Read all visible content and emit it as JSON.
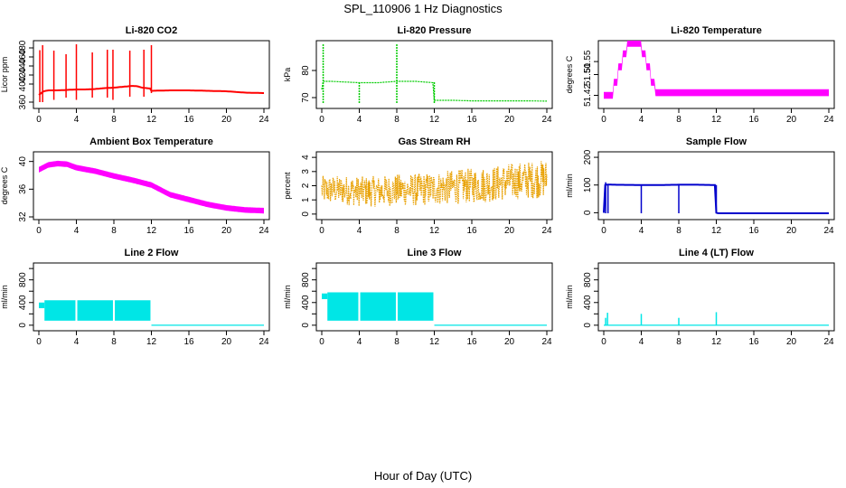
{
  "page": {
    "title": "SPL_110906  1 Hz Diagnostics",
    "xlabel": "Hour of Day (UTC)"
  },
  "chart_data": [
    {
      "id": "co2",
      "type": "line",
      "title": "Li-820 CO2",
      "ylabel": "Licor ppm",
      "xlim": [
        0,
        24
      ],
      "xticks": [
        0,
        4,
        8,
        12,
        16,
        20,
        24
      ],
      "ylim": [
        352,
        490
      ],
      "yticks": [
        360,
        400,
        420,
        440,
        460,
        480
      ],
      "color": "#ff0000",
      "style": "line",
      "series": [
        {
          "name": "CO2",
          "x": [
            0,
            0.5,
            1,
            2,
            3,
            4,
            5,
            6,
            7,
            8,
            9,
            10,
            10.5,
            11,
            11.9,
            12,
            14,
            16,
            18,
            20,
            22,
            24
          ],
          "y": [
            376,
            384,
            386,
            386,
            387,
            388,
            388,
            389,
            391,
            392,
            394,
            396,
            395,
            392,
            390,
            385,
            386,
            386,
            385,
            384,
            381,
            380
          ]
        }
      ],
      "spikes": [
        {
          "x": 0.1,
          "y1": 360,
          "y2": 475
        },
        {
          "x": 0.4,
          "y1": 360,
          "y2": 486
        },
        {
          "x": 1.6,
          "y1": 365,
          "y2": 474
        },
        {
          "x": 2.9,
          "y1": 370,
          "y2": 466
        },
        {
          "x": 4.0,
          "y1": 365,
          "y2": 488
        },
        {
          "x": 5.7,
          "y1": 370,
          "y2": 470
        },
        {
          "x": 7.3,
          "y1": 370,
          "y2": 476
        },
        {
          "x": 7.9,
          "y1": 365,
          "y2": 476
        },
        {
          "x": 9.7,
          "y1": 372,
          "y2": 474
        },
        {
          "x": 11.2,
          "y1": 372,
          "y2": 476
        },
        {
          "x": 12.0,
          "y1": 380,
          "y2": 486
        }
      ]
    },
    {
      "id": "pressure",
      "type": "line",
      "title": "Li-820 Pressure",
      "ylabel": "kPa",
      "xlim": [
        0,
        24
      ],
      "xticks": [
        0,
        4,
        8,
        12,
        16,
        20,
        24
      ],
      "ylim": [
        67,
        90
      ],
      "yticks": [
        70,
        80
      ],
      "color": "#00cc00",
      "style": "dotted",
      "series": [
        {
          "name": "Pressure",
          "x": [
            0,
            0.1,
            0.3,
            1,
            4,
            6,
            8,
            10,
            11.9,
            12,
            12.2,
            14,
            16,
            18,
            20,
            22,
            24
          ],
          "y": [
            73,
            76,
            76,
            76,
            75.5,
            75.5,
            76,
            76,
            75.5,
            69,
            69,
            69,
            68.8,
            68.8,
            68.8,
            68.8,
            68.7
          ]
        }
      ],
      "spikes": [
        {
          "x": 0.15,
          "y1": 68,
          "y2": 90
        },
        {
          "x": 4.0,
          "y1": 68,
          "y2": 76
        },
        {
          "x": 8.0,
          "y1": 68,
          "y2": 90
        },
        {
          "x": 12.0,
          "y1": 68,
          "y2": 76
        }
      ]
    },
    {
      "id": "temp820",
      "type": "step",
      "title": "Li-820 Temperature",
      "ylabel": "degrees C",
      "xlim": [
        0,
        24
      ],
      "xticks": [
        0,
        4,
        8,
        12,
        16,
        20,
        24
      ],
      "ylim": [
        51.38,
        51.62
      ],
      "yticks": [
        51.42,
        51.5,
        51.55
      ],
      "ytick_labels": [
        "51.42",
        "51.50",
        "51.55"
      ],
      "color": "#ff00ff",
      "style": "band",
      "series": [
        {
          "name": "Temperature",
          "x": [
            0,
            1,
            1.5,
            2,
            2.5,
            3.5,
            4,
            4.5,
            5,
            5.5,
            24
          ],
          "y": [
            51.42,
            51.47,
            51.53,
            51.58,
            51.62,
            51.62,
            51.58,
            51.53,
            51.47,
            51.43,
            51.43
          ]
        }
      ]
    },
    {
      "id": "ambient",
      "type": "line",
      "title": "Ambient Box Temperature",
      "ylabel": "degrees C",
      "xlim": [
        0,
        24
      ],
      "xticks": [
        0,
        4,
        8,
        12,
        16,
        20,
        24
      ],
      "ylim": [
        32,
        41
      ],
      "yticks": [
        32,
        36,
        40
      ],
      "color": "#ff00ff",
      "style": "band",
      "series": [
        {
          "name": "Ambient",
          "x": [
            0,
            1,
            2,
            3,
            4,
            6,
            8,
            10,
            12,
            13,
            14,
            16,
            18,
            20,
            22,
            24
          ],
          "y": [
            38.8,
            39.5,
            39.7,
            39.6,
            39.1,
            38.6,
            37.9,
            37.3,
            36.6,
            35.9,
            35.2,
            34.5,
            33.8,
            33.3,
            33.0,
            32.9
          ]
        }
      ]
    },
    {
      "id": "rh",
      "type": "line",
      "title": "Gas Stream RH",
      "ylabel": "percent",
      "xlim": [
        0,
        24
      ],
      "xticks": [
        0,
        4,
        8,
        12,
        16,
        20,
        24
      ],
      "ylim": [
        -0.2,
        4.2
      ],
      "yticks": [
        0,
        1,
        2,
        3,
        4
      ],
      "color": "#e8a000",
      "style": "noise",
      "series": [
        {
          "name": "RH",
          "x": [
            0,
            2,
            4,
            6,
            8,
            10,
            12,
            14,
            16,
            18,
            20,
            22,
            24
          ],
          "y": [
            1.7,
            1.7,
            1.6,
            1.6,
            1.7,
            1.7,
            1.8,
            1.9,
            2.0,
            2.1,
            2.3,
            2.4,
            2.5
          ]
        }
      ]
    },
    {
      "id": "sampleflow",
      "type": "line",
      "title": "Sample Flow",
      "ylabel": "ml/min",
      "xlim": [
        0,
        24
      ],
      "xticks": [
        0,
        4,
        8,
        12,
        16,
        20,
        24
      ],
      "ylim": [
        -15,
        210
      ],
      "yticks": [
        0,
        100,
        200
      ],
      "color": "#0000cc",
      "style": "line",
      "series": [
        {
          "name": "Sample Flow",
          "x": [
            0,
            0.1,
            0.5,
            1,
            4,
            6,
            8,
            10,
            11.9,
            12,
            12.2,
            16,
            20,
            24
          ],
          "y": [
            0,
            100,
            102,
            101,
            100,
            100,
            101,
            101,
            100,
            0,
            -2,
            -2,
            -2,
            -2
          ]
        }
      ],
      "spikes": [
        {
          "x": 0.2,
          "y1": -2,
          "y2": 110
        },
        {
          "x": 0.45,
          "y1": -2,
          "y2": 100
        },
        {
          "x": 4.0,
          "y1": -2,
          "y2": 100
        },
        {
          "x": 8.0,
          "y1": -2,
          "y2": 100
        },
        {
          "x": 12.0,
          "y1": -2,
          "y2": 100
        }
      ]
    },
    {
      "id": "line2",
      "type": "line",
      "title": "Line 2 Flow",
      "ylabel": "ml/min",
      "xlim": [
        0,
        24
      ],
      "xticks": [
        0,
        4,
        8,
        12,
        16,
        20,
        24
      ],
      "ylim": [
        -50,
        1050
      ],
      "yticks": [
        0,
        200,
        400,
        600,
        800,
        1000
      ],
      "ytick_labels": [
        "0",
        "",
        "400",
        "",
        "800",
        ""
      ],
      "color": "#00e6e6",
      "style": "blocks",
      "blocks": [
        {
          "x1": 0.0,
          "x2": 0.6,
          "y1": 300,
          "y2": 400
        },
        {
          "x1": 0.6,
          "x2": 3.9,
          "y1": 80,
          "y2": 440
        },
        {
          "x1": 4.1,
          "x2": 7.9,
          "y1": 80,
          "y2": 440
        },
        {
          "x1": 8.1,
          "x2": 11.9,
          "y1": 80,
          "y2": 440
        }
      ],
      "series": [
        {
          "name": "Line 2",
          "x": [
            12,
            24
          ],
          "y": [
            0,
            0
          ]
        }
      ]
    },
    {
      "id": "line3",
      "type": "line",
      "title": "Line 3 Flow",
      "ylabel": "ml/min",
      "xlim": [
        0,
        24
      ],
      "xticks": [
        0,
        4,
        8,
        12,
        16,
        20,
        24
      ],
      "ylim": [
        -50,
        1050
      ],
      "yticks": [
        0,
        200,
        400,
        600,
        800,
        1000
      ],
      "ytick_labels": [
        "0",
        "",
        "400",
        "",
        "800",
        ""
      ],
      "color": "#00e6e6",
      "style": "blocks",
      "blocks": [
        {
          "x1": 0.0,
          "x2": 0.6,
          "y1": 460,
          "y2": 560
        },
        {
          "x1": 0.6,
          "x2": 3.9,
          "y1": 80,
          "y2": 580
        },
        {
          "x1": 4.1,
          "x2": 7.9,
          "y1": 80,
          "y2": 580
        },
        {
          "x1": 8.1,
          "x2": 11.9,
          "y1": 80,
          "y2": 580
        }
      ],
      "series": [
        {
          "name": "Line 3",
          "x": [
            12,
            24
          ],
          "y": [
            0,
            0
          ]
        }
      ]
    },
    {
      "id": "line4",
      "type": "line",
      "title": "Line 4 (LT) Flow",
      "ylabel": "ml/min",
      "xlim": [
        0,
        24
      ],
      "xticks": [
        0,
        4,
        8,
        12,
        16,
        20,
        24
      ],
      "ylim": [
        -50,
        1050
      ],
      "yticks": [
        0,
        200,
        400,
        600,
        800,
        1000
      ],
      "ytick_labels": [
        "0",
        "",
        "400",
        "",
        "800",
        ""
      ],
      "color": "#00e6e6",
      "style": "line",
      "series": [
        {
          "name": "Line 4",
          "x": [
            0,
            24
          ],
          "y": [
            0,
            0
          ]
        }
      ],
      "spikes": [
        {
          "x": 0.2,
          "y1": 0,
          "y2": 130
        },
        {
          "x": 0.4,
          "y1": 0,
          "y2": 220
        },
        {
          "x": 4.0,
          "y1": 0,
          "y2": 200
        },
        {
          "x": 8.0,
          "y1": 0,
          "y2": 130
        },
        {
          "x": 12.0,
          "y1": 0,
          "y2": 230
        }
      ]
    }
  ]
}
